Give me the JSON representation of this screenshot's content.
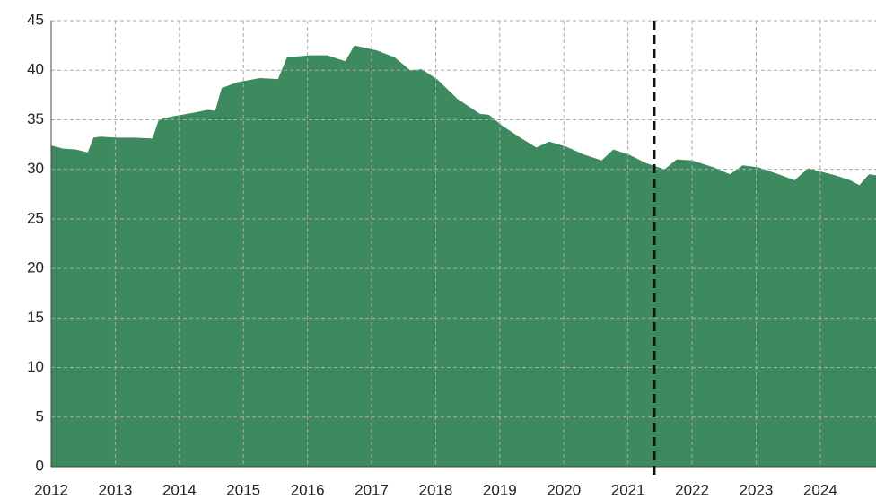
{
  "chart_data": {
    "type": "area",
    "color": "#3d8a5f",
    "x": [
      2012.0,
      2012.18,
      2012.39,
      2012.57,
      2012.66,
      2012.77,
      2013.0,
      2013.31,
      2013.58,
      2013.68,
      2013.86,
      2014.21,
      2014.45,
      2014.56,
      2014.66,
      2014.91,
      2015.26,
      2015.54,
      2015.68,
      2016.03,
      2016.31,
      2016.59,
      2016.73,
      2017.08,
      2017.36,
      2017.6,
      2017.78,
      2018.02,
      2018.34,
      2018.69,
      2018.83,
      2019.04,
      2019.32,
      2019.57,
      2019.77,
      2020.03,
      2020.31,
      2020.59,
      2020.77,
      2021.01,
      2021.29,
      2021.57,
      2021.76,
      2022.0,
      2022.34,
      2022.59,
      2022.79,
      2023.04,
      2023.39,
      2023.6,
      2023.81,
      2024.23,
      2024.47,
      2024.61,
      2024.76,
      2024.87
    ],
    "values": [
      32.4,
      32.1,
      32.0,
      31.7,
      33.2,
      33.3,
      33.2,
      33.2,
      33.1,
      35.0,
      35.3,
      35.7,
      36.0,
      35.9,
      38.2,
      38.8,
      39.2,
      39.1,
      41.3,
      41.5,
      41.5,
      40.9,
      42.5,
      42.0,
      41.3,
      40.0,
      40.1,
      39.1,
      37.1,
      35.6,
      35.5,
      34.4,
      33.2,
      32.2,
      32.8,
      32.3,
      31.5,
      30.9,
      32.0,
      31.5,
      30.6,
      30.0,
      31.0,
      30.9,
      30.2,
      29.5,
      30.4,
      30.2,
      29.4,
      28.9,
      30.1,
      29.4,
      28.9,
      28.4,
      29.5,
      29.4
    ],
    "xlim": [
      2012,
      2024.87
    ],
    "xticks": [
      2012,
      2013,
      2014,
      2015,
      2016,
      2017,
      2018,
      2019,
      2020,
      2021,
      2022,
      2023,
      2024
    ],
    "ylim": [
      0,
      45
    ],
    "yticks": [
      0,
      5,
      10,
      15,
      20,
      25,
      30,
      35,
      40,
      45
    ],
    "grid": true,
    "vline": 2021.41
  }
}
